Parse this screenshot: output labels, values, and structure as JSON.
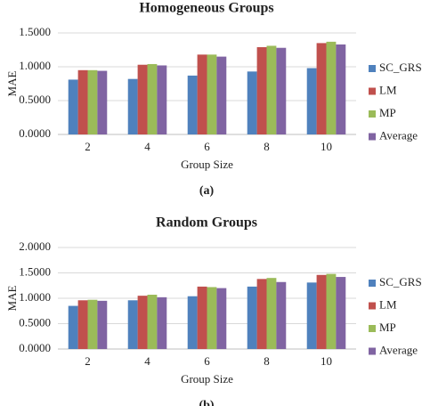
{
  "chart_data": [
    {
      "type": "bar",
      "title": "Homogeneous Groups",
      "caption": "(a)",
      "x_label": "Group Size",
      "y_label": "MAE",
      "categories": [
        "2",
        "4",
        "6",
        "8",
        "10"
      ],
      "series": [
        {
          "name": "SC_GRS",
          "color": "#4f81bd",
          "values": [
            0.81,
            0.82,
            0.87,
            0.93,
            0.98
          ]
        },
        {
          "name": "LM",
          "color": "#c0504d",
          "values": [
            0.95,
            1.03,
            1.18,
            1.29,
            1.35
          ]
        },
        {
          "name": "MP",
          "color": "#9bbb59",
          "values": [
            0.95,
            1.04,
            1.18,
            1.31,
            1.37
          ]
        },
        {
          "name": "Average",
          "color": "#8064a2",
          "values": [
            0.94,
            1.02,
            1.15,
            1.28,
            1.33
          ]
        }
      ],
      "ylim": [
        0,
        1.5
      ],
      "yticks": [
        {
          "value": 0,
          "label": "0.0000"
        },
        {
          "value": 0.5,
          "label": "0.5000"
        },
        {
          "value": 1,
          "label": "1.0000"
        },
        {
          "value": 1.5,
          "label": "1.5000"
        }
      ],
      "grid": true,
      "legend": "right"
    },
    {
      "type": "bar",
      "title": "Random Groups",
      "caption": "(b)",
      "x_label": "Group Size",
      "y_label": "MAE",
      "categories": [
        "2",
        "4",
        "6",
        "8",
        "10"
      ],
      "series": [
        {
          "name": "SC_GRS",
          "color": "#4f81bd",
          "values": [
            0.85,
            0.96,
            1.04,
            1.23,
            1.31
          ]
        },
        {
          "name": "LM",
          "color": "#c0504d",
          "values": [
            0.96,
            1.05,
            1.23,
            1.38,
            1.46
          ]
        },
        {
          "name": "MP",
          "color": "#9bbb59",
          "values": [
            0.97,
            1.07,
            1.22,
            1.4,
            1.48
          ]
        },
        {
          "name": "Average",
          "color": "#8064a2",
          "values": [
            0.95,
            1.02,
            1.2,
            1.32,
            1.42
          ]
        }
      ],
      "ylim": [
        0,
        2
      ],
      "yticks": [
        {
          "value": 0,
          "label": "0.0000"
        },
        {
          "value": 0.5,
          "label": "0.5000"
        },
        {
          "value": 1,
          "label": "1.0000"
        },
        {
          "value": 1.5,
          "label": "1.5000"
        },
        {
          "value": 2,
          "label": "2.0000"
        }
      ],
      "grid": true,
      "legend": "right"
    }
  ]
}
